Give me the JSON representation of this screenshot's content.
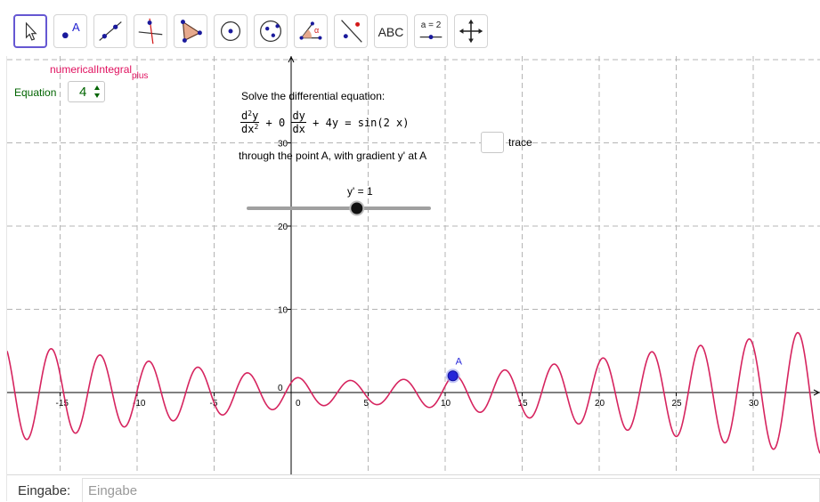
{
  "toolbar": {
    "tools": [
      {
        "name": "move-tool",
        "icon": "cursor-arrow-icon",
        "active": true
      },
      {
        "name": "point-tool",
        "icon": "point-icon",
        "label": "A"
      },
      {
        "name": "line-tool",
        "icon": "line-icon"
      },
      {
        "name": "perpendicular-tool",
        "icon": "perpendicular-line-icon"
      },
      {
        "name": "polygon-tool",
        "icon": "polygon-icon"
      },
      {
        "name": "circle-tool",
        "icon": "circle-center-point-icon"
      },
      {
        "name": "conic-tool",
        "icon": "ellipse-icon"
      },
      {
        "name": "angle-tool",
        "icon": "angle-icon",
        "label": "α"
      },
      {
        "name": "reflect-tool",
        "icon": "reflect-about-line-icon"
      },
      {
        "name": "text-tool",
        "icon": "text-icon",
        "label": "ABC"
      },
      {
        "name": "slider-tool",
        "icon": "slider-icon",
        "label": "a = 2"
      },
      {
        "name": "move-graphics-tool",
        "icon": "move-graphics-view-icon"
      }
    ]
  },
  "graphics": {
    "numerical_integral_label": "numericalIntegral",
    "numerical_integral_sub": "plus",
    "equation_label": "Equation",
    "equation_value": "4",
    "solve_text": "Solve the differential equation:",
    "eq_d2y_num": "d",
    "eq_d2y_num_sup": "2",
    "eq_d2y_num_tail": "y",
    "eq_d2y_den": "dx",
    "eq_d2y_den_sup": "2",
    "eq_plus0": "+ 0",
    "eq_dy_num": "dy",
    "eq_dy_den": "dx",
    "eq_rhs": "+ 4y = sin(2 x)",
    "through_text": "through the point A, with gradient y' at A",
    "trace_label": "trace",
    "trace_checked": false,
    "slider_caption": "y' = 1",
    "slider": {
      "min": -5,
      "max": 5,
      "value": 1
    },
    "point_label": "A",
    "point": {
      "x": 10.5,
      "y": 2
    },
    "axes": {
      "x_ticks": [
        "-15",
        "-10",
        "-5",
        "0",
        "5",
        "10",
        "15",
        "20",
        "25",
        "30"
      ],
      "y_ticks": [
        "30",
        "20",
        "10",
        "0"
      ]
    },
    "curve_color": "#d6245f",
    "point_color": "#2525d8"
  },
  "input_bar": {
    "label": "Eingabe:",
    "placeholder": "Eingabe"
  }
}
